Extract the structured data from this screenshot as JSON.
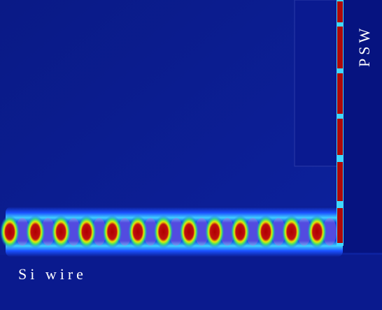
{
  "labels": {
    "psw": "PSW",
    "wire": "Si wire"
  }
}
